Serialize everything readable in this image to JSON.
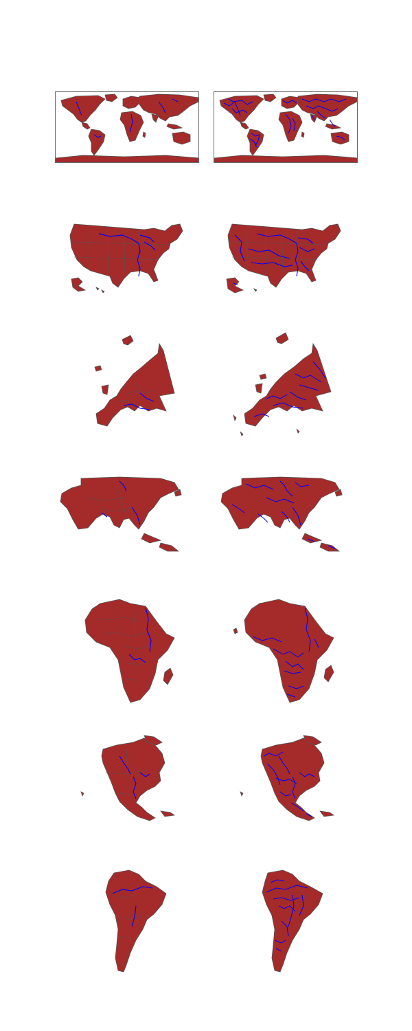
{
  "figure": {
    "background": "#ffffff",
    "colors": {
      "land": "#a52a2a",
      "border": "#555555",
      "river": "#0000ff",
      "frame": "#666666"
    }
  },
  "rows": [
    {
      "region": "world",
      "framed": true,
      "panels": [
        {
          "river_detail": "major"
        },
        {
          "river_detail": "detailed"
        }
      ]
    },
    {
      "region": "usa",
      "framed": false,
      "panels": [
        {
          "river_detail": "major"
        },
        {
          "river_detail": "detailed"
        }
      ]
    },
    {
      "region": "europe",
      "framed": false,
      "panels": [
        {
          "river_detail": "major"
        },
        {
          "river_detail": "detailed"
        }
      ]
    },
    {
      "region": "asia",
      "framed": false,
      "panels": [
        {
          "river_detail": "major"
        },
        {
          "river_detail": "detailed"
        }
      ]
    },
    {
      "region": "africa",
      "framed": false,
      "panels": [
        {
          "river_detail": "major"
        },
        {
          "river_detail": "detailed"
        }
      ]
    },
    {
      "region": "north-america",
      "framed": false,
      "panels": [
        {
          "river_detail": "major"
        },
        {
          "river_detail": "detailed"
        }
      ]
    },
    {
      "region": "south-america",
      "framed": false,
      "panels": [
        {
          "river_detail": "major"
        },
        {
          "river_detail": "detailed"
        }
      ]
    }
  ]
}
